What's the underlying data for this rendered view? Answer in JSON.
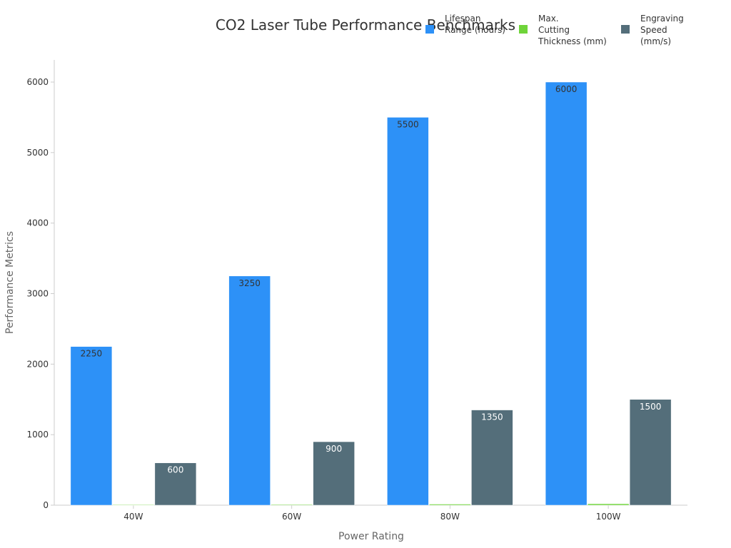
{
  "chart_data": {
    "type": "bar",
    "title": "CO2 Laser Tube Performance Benchmarks",
    "xlabel": "Power Rating",
    "ylabel": "Performance Metrics",
    "categories": [
      "40W",
      "60W",
      "80W",
      "100W"
    ],
    "ylim": [
      0,
      6300
    ],
    "yticks": [
      0,
      1000,
      2000,
      3000,
      4000,
      5000,
      6000
    ],
    "grid": false,
    "legend_position": "top-right",
    "series": [
      {
        "name": "Lifespan Range (hours)",
        "legend_lines": [
          "Lifespan",
          "Range (hours)"
        ],
        "color": "#2d91f7",
        "label_color": "#333333",
        "values": [
          2250,
          3250,
          5500,
          6000
        ]
      },
      {
        "name": "Max. Cutting Thickness (mm)",
        "legend_lines": [
          "Max.",
          "Cutting",
          "Thickness (mm)"
        ],
        "color": "#6fd43a",
        "label_color": "#333333",
        "values": [
          6,
          10,
          15,
          20
        ]
      },
      {
        "name": "Engraving Speed (mm/s)",
        "legend_lines": [
          "Engraving",
          "Speed",
          "(mm/s)"
        ],
        "color": "#546e7a",
        "label_color": "#ffffff",
        "values": [
          600,
          900,
          1350,
          1500
        ]
      }
    ]
  }
}
